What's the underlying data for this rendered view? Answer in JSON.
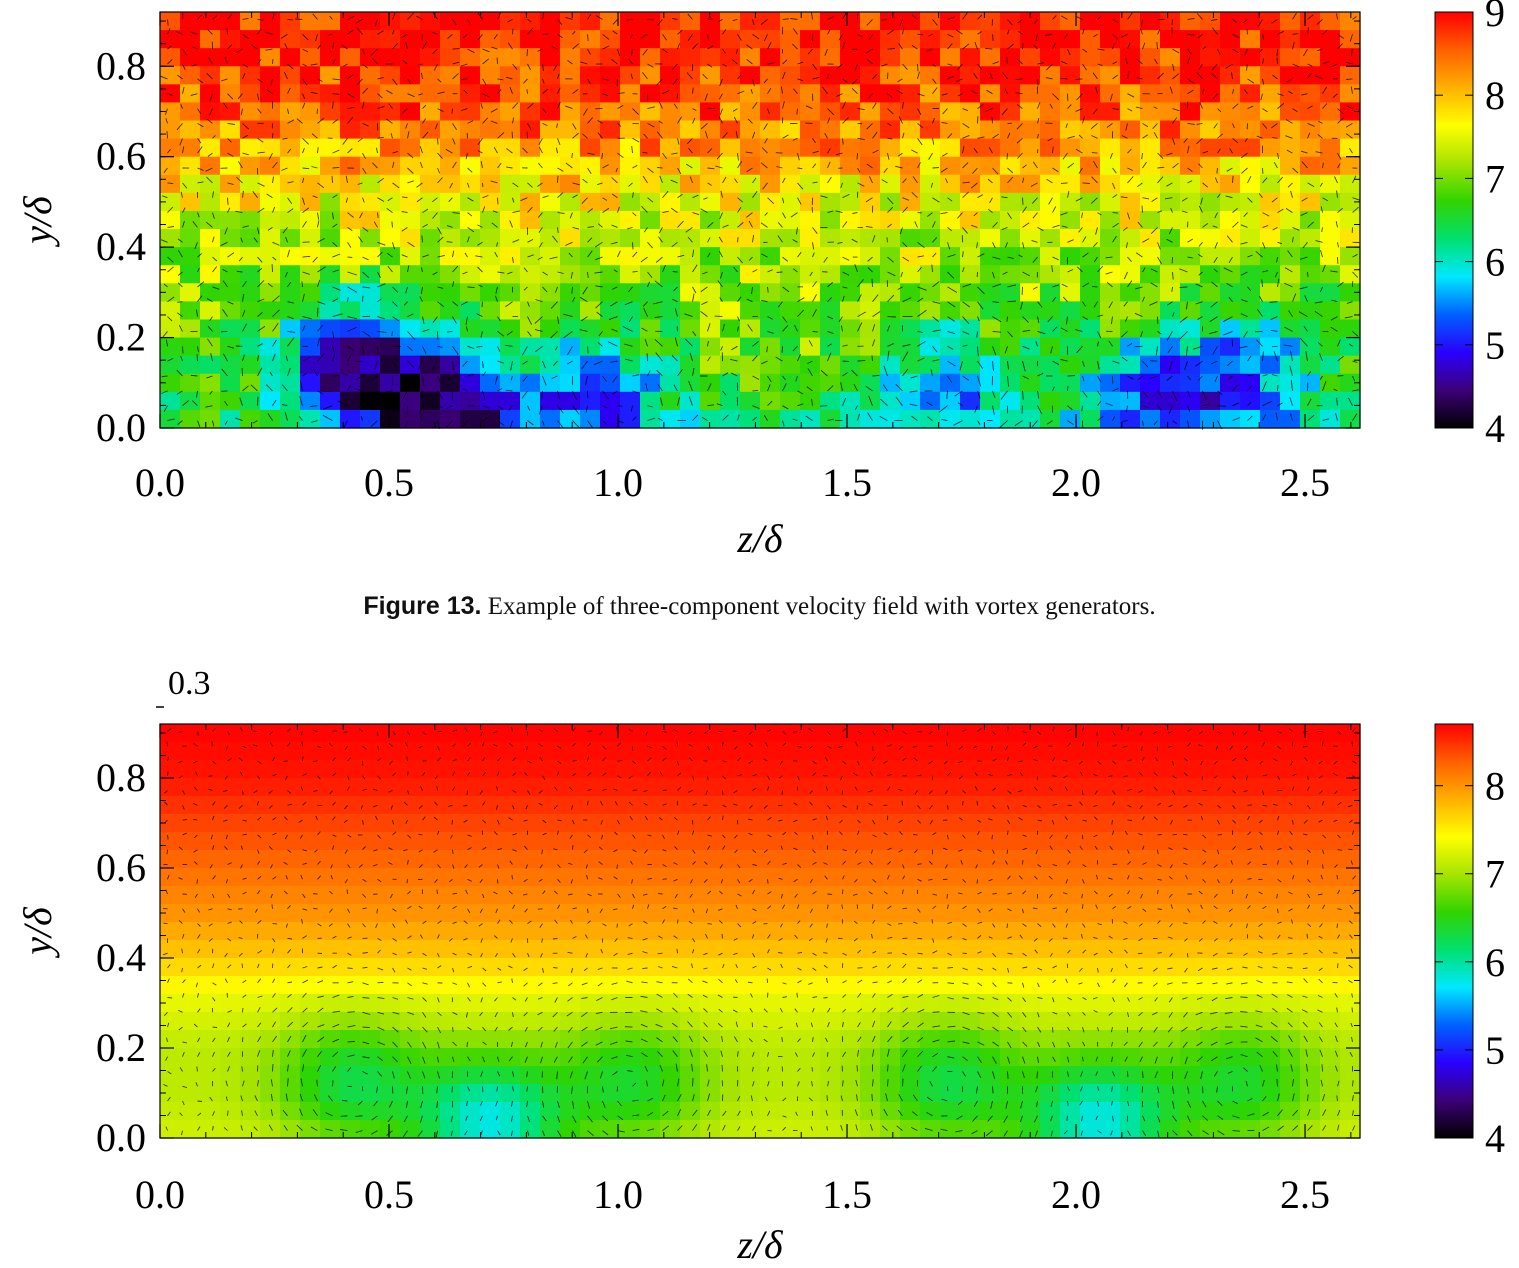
{
  "caption": {
    "label": "Figure 13.",
    "text": " Example of three-component velocity field with vortex generators."
  },
  "colormap": {
    "stops": [
      "#000000",
      "#3c0078",
      "#2a00ff",
      "#0060ff",
      "#00e8ff",
      "#00e070",
      "#30d400",
      "#a6e400",
      "#ffff00",
      "#ffb000",
      "#ff6000",
      "#ff0000"
    ]
  },
  "chart_data": [
    {
      "type": "heatmap",
      "subtype": "contour with velocity vector overlay",
      "field": "instantaneous",
      "xlabel": "z/δ",
      "ylabel": "y/δ",
      "xlim": [
        0.0,
        2.62
      ],
      "ylim": [
        0.0,
        0.92
      ],
      "xticks": [
        "0.0",
        "0.5",
        "1.0",
        "1.5",
        "2.0",
        "2.5"
      ],
      "yticks": [
        "0.0",
        "0.2",
        "0.4",
        "0.6",
        "0.8"
      ],
      "colorbar": {
        "min": 4,
        "max": 9,
        "ticks": [
          "4",
          "5",
          "6",
          "7",
          "8",
          "9"
        ]
      },
      "base_profile": {
        "y": [
          0.0,
          0.1,
          0.2,
          0.3,
          0.4,
          0.5,
          0.6,
          0.7,
          0.8,
          0.92
        ],
        "u": [
          6.4,
          6.8,
          7.0,
          7.1,
          7.3,
          7.6,
          8.1,
          8.5,
          8.8,
          8.9
        ]
      },
      "low_speed_regions": [
        {
          "z": 0.42,
          "y": 0.14,
          "u_min": 4.6
        },
        {
          "z": 0.62,
          "y": 0.04,
          "u_min": 4.3
        },
        {
          "z": 0.95,
          "y": 0.08,
          "u_min": 5.2
        },
        {
          "z": 1.72,
          "y": 0.1,
          "u_min": 5.6
        },
        {
          "z": 2.18,
          "y": 0.08,
          "u_min": 5.1
        },
        {
          "z": 2.4,
          "y": 0.14,
          "u_min": 5.6
        }
      ],
      "vortex_centres": [
        {
          "z": 0.4,
          "y": 0.12,
          "rotation": "clockwise"
        },
        {
          "z": 1.0,
          "y": 0.1,
          "rotation": "counter-clockwise"
        },
        {
          "z": 1.7,
          "y": 0.12,
          "rotation": "clockwise"
        },
        {
          "z": 2.35,
          "y": 0.1,
          "rotation": "counter-clockwise"
        }
      ]
    },
    {
      "type": "heatmap",
      "subtype": "contour with velocity vector overlay",
      "field": "mean",
      "corner_label": "0.3",
      "xlabel": "z/δ",
      "ylabel": "y/δ",
      "xlim": [
        0.0,
        2.62
      ],
      "ylim": [
        0.0,
        0.92
      ],
      "xticks": [
        "0.0",
        "0.5",
        "1.0",
        "1.5",
        "2.0",
        "2.5"
      ],
      "yticks": [
        "0.0",
        "0.2",
        "0.4",
        "0.6",
        "0.8"
      ],
      "colorbar": {
        "min": 4,
        "max": 8.7,
        "ticks": [
          "4",
          "5",
          "6",
          "7",
          "8"
        ]
      },
      "base_profile": {
        "y": [
          0.0,
          0.1,
          0.2,
          0.3,
          0.4,
          0.5,
          0.6,
          0.7,
          0.8,
          0.92
        ],
        "u": [
          7.2,
          7.1,
          7.1,
          7.3,
          7.7,
          8.0,
          8.2,
          8.4,
          8.6,
          8.7
        ]
      },
      "low_speed_regions": [
        {
          "z": 0.42,
          "y": 0.12,
          "u_min": 6.3
        },
        {
          "z": 0.72,
          "y": 0.03,
          "u_min": 5.8
        },
        {
          "z": 1.03,
          "y": 0.12,
          "u_min": 6.4
        },
        {
          "z": 1.72,
          "y": 0.12,
          "u_min": 6.3
        },
        {
          "z": 2.05,
          "y": 0.03,
          "u_min": 5.8
        },
        {
          "z": 2.36,
          "y": 0.12,
          "u_min": 6.4
        }
      ],
      "vortex_centres": [
        {
          "z": 0.42,
          "y": 0.12,
          "rotation": "clockwise"
        },
        {
          "z": 1.03,
          "y": 0.12,
          "rotation": "counter-clockwise"
        },
        {
          "z": 1.72,
          "y": 0.12,
          "rotation": "clockwise"
        },
        {
          "z": 2.36,
          "y": 0.12,
          "rotation": "counter-clockwise"
        }
      ]
    }
  ]
}
